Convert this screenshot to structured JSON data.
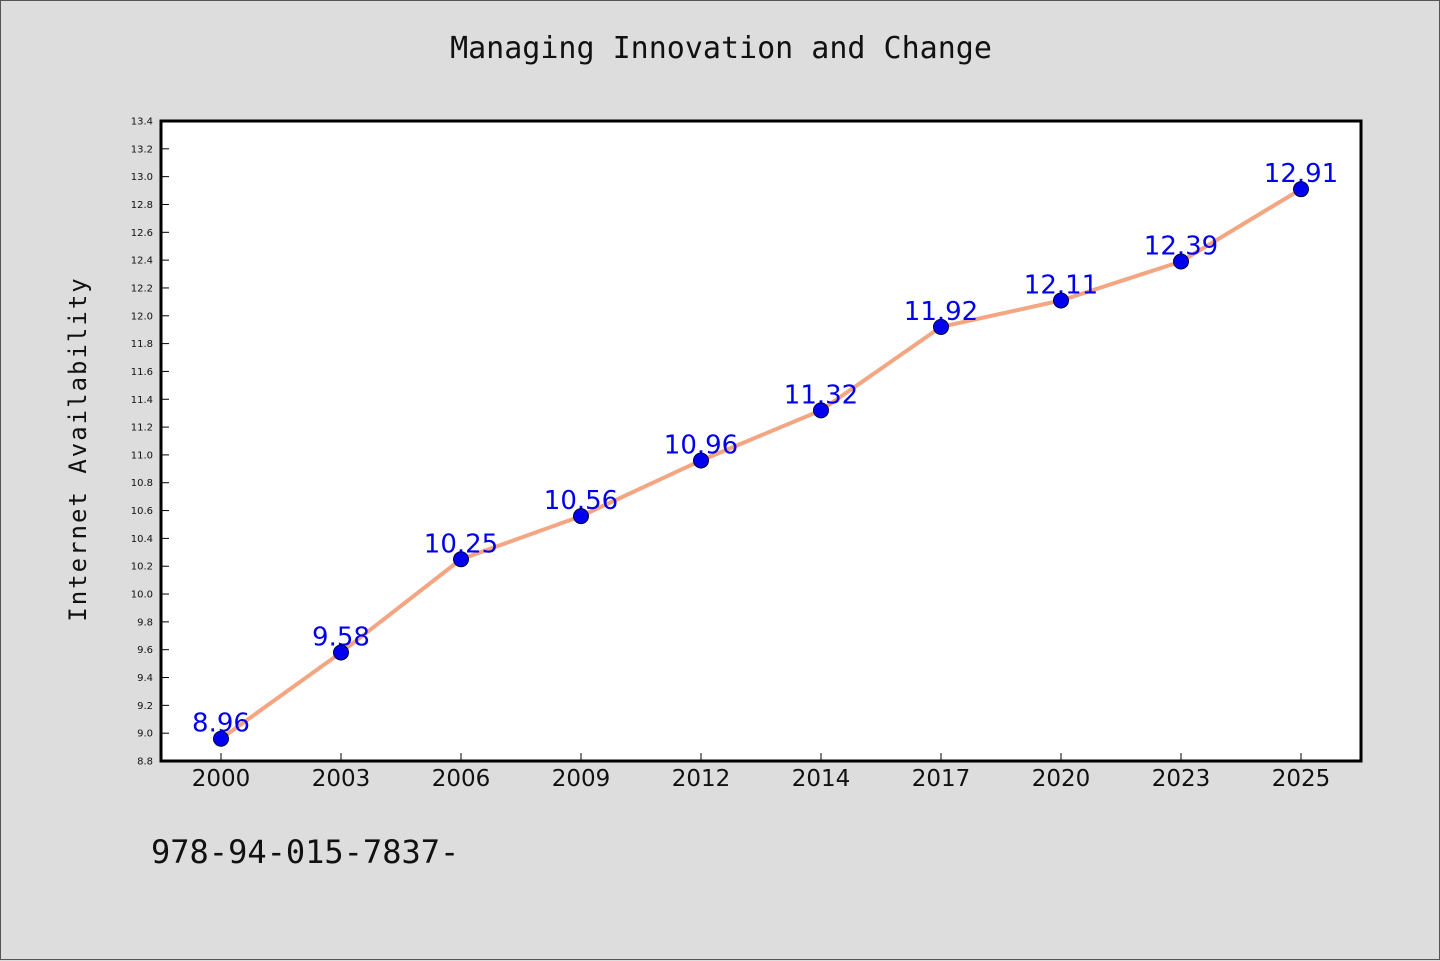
{
  "chart_title": "Managing Innovation and Change",
  "footer_text": "978-94-015-7837-",
  "chart_data": {
    "type": "line",
    "title": "Managing Innovation and Change",
    "xlabel": "",
    "ylabel": "Internet Availability",
    "categories": [
      "2000",
      "2003",
      "2006",
      "2009",
      "2012",
      "2014",
      "2017",
      "2020",
      "2023",
      "2025"
    ],
    "values": [
      8.96,
      9.58,
      10.25,
      10.56,
      10.96,
      11.32,
      11.92,
      12.11,
      12.39,
      12.91
    ],
    "data_labels": [
      "8.96",
      "9.58",
      "10.25",
      "10.56",
      "10.96",
      "11.32",
      "11.92",
      "12.11",
      "12.39",
      "12.91"
    ],
    "ylim": [
      8.8,
      13.4
    ],
    "yticks": [
      "8.8",
      "9.0",
      "9.2",
      "9.4",
      "9.6",
      "9.8",
      "10.0",
      "10.2",
      "10.4",
      "10.6",
      "10.8",
      "11.0",
      "11.2",
      "11.4",
      "11.6",
      "11.8",
      "12.0",
      "12.2",
      "12.4",
      "12.6",
      "12.8",
      "13.0",
      "13.2",
      "13.4"
    ],
    "grid": false,
    "legend": "none",
    "colors": {
      "background": "#dddddd",
      "plot_area": "#ffffff",
      "line": "#f4a582",
      "marker": "#0000ee",
      "data_label": "#0000ee"
    }
  }
}
